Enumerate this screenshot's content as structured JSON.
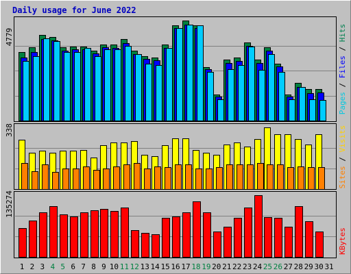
{
  "chart_data": {
    "type": "bar",
    "title": "Daily usage for June 2022",
    "categories": [
      "1",
      "2",
      "3",
      "4",
      "5",
      "6",
      "7",
      "8",
      "9",
      "10",
      "11",
      "12",
      "13",
      "14",
      "15",
      "16",
      "17",
      "18",
      "19",
      "20",
      "21",
      "22",
      "23",
      "24",
      "25",
      "26",
      "27",
      "28",
      "29",
      "30",
      "31"
    ],
    "weekend_days": [
      "4",
      "5",
      "11",
      "12",
      "18",
      "19",
      "25",
      "26"
    ],
    "panels": [
      {
        "id": "top",
        "max_label": "4779",
        "ymax": 4779,
        "legend": [
          {
            "text": "Pages",
            "color": "#00c8e0"
          },
          {
            "text": " / ",
            "color": "#000000"
          },
          {
            "text": "Files",
            "color": "#0000ff"
          },
          {
            "text": " / ",
            "color": "#000000"
          },
          {
            "text": "Hits",
            "color": "#008050"
          }
        ],
        "series": [
          {
            "name": "Hits",
            "color": "#008040",
            "values": [
              3262,
              3496,
              4076,
              3983,
              3496,
              3546,
              3546,
              3346,
              3646,
              3634,
              3896,
              3325,
              3075,
              3025,
              3646,
              4566,
              4779,
              4566,
              2562,
              1246,
              2912,
              2998,
              3746,
              2912,
              3496,
              2728,
              1246,
              1792,
              1496,
              1496,
              null
            ]
          },
          {
            "name": "Files",
            "color": "#0000ff",
            "values": [
              3012,
              3258,
              3905,
              3825,
              3334,
              3412,
              3412,
              3192,
              3496,
              3483,
              3712,
              3185,
              2932,
              2875,
              3468,
              4420,
              4587,
              4420,
              2465,
              1132,
              2765,
              2858,
              3582,
              2765,
              3325,
              2595,
              1132,
              1612,
              1325,
              1335,
              null
            ]
          },
          {
            "name": "Pages",
            "color": "#00ccff",
            "values": [
              2860,
              3075,
              3912,
              3783,
              3262,
              3275,
              3462,
              3075,
              3412,
              3412,
              3582,
              3168,
              2715,
              2660,
              3482,
              4420,
              4587,
              4550,
              2325,
              1012,
              2446,
              2658,
              3546,
              2412,
              3162,
              2330,
              1012,
              1612,
              1012,
              966,
              null
            ]
          }
        ]
      },
      {
        "id": "mid",
        "max_label": "338",
        "ymax": 338,
        "legend": [
          {
            "text": "Sites",
            "color": "#ff8000"
          },
          {
            "text": " / ",
            "color": "#000000"
          },
          {
            "text": "Visits",
            "color": "#ffd000"
          }
        ],
        "series": [
          {
            "name": "Visits",
            "color": "#ffff00",
            "values": [
              272,
              199,
              209,
              199,
              209,
              209,
              214,
              174,
              239,
              254,
              254,
              264,
              189,
              179,
              239,
              279,
              279,
              214,
              199,
              189,
              244,
              254,
              234,
              274,
              338,
              299,
              299,
              274,
              244,
              299,
              null
            ]
          },
          {
            "name": "Sites",
            "color": "#ff8000",
            "values": [
              144,
              99,
              134,
              94,
              114,
              114,
              124,
              104,
              114,
              124,
              134,
              144,
              114,
              124,
              119,
              134,
              134,
              114,
              114,
              119,
              134,
              134,
              134,
              144,
              134,
              134,
              119,
              124,
              119,
              119,
              null
            ]
          }
        ]
      },
      {
        "id": "bot",
        "max_label": "135274",
        "ymax": 135274,
        "legend": [
          {
            "text": "KBytes",
            "color": "#ff0000"
          }
        ],
        "series": [
          {
            "name": "KBytes",
            "color": "#ff0000",
            "values": [
              63500,
              80000,
              97500,
              111500,
              93500,
              88500,
              97000,
              102500,
              104500,
              100000,
              108500,
              59000,
              53000,
              50000,
              86000,
              88500,
              97000,
              121000,
              98000,
              55000,
              66000,
              85000,
              108000,
              135274,
              87000,
              86000,
              66000,
              111500,
              78000,
              55000,
              null
            ]
          }
        ]
      }
    ]
  }
}
